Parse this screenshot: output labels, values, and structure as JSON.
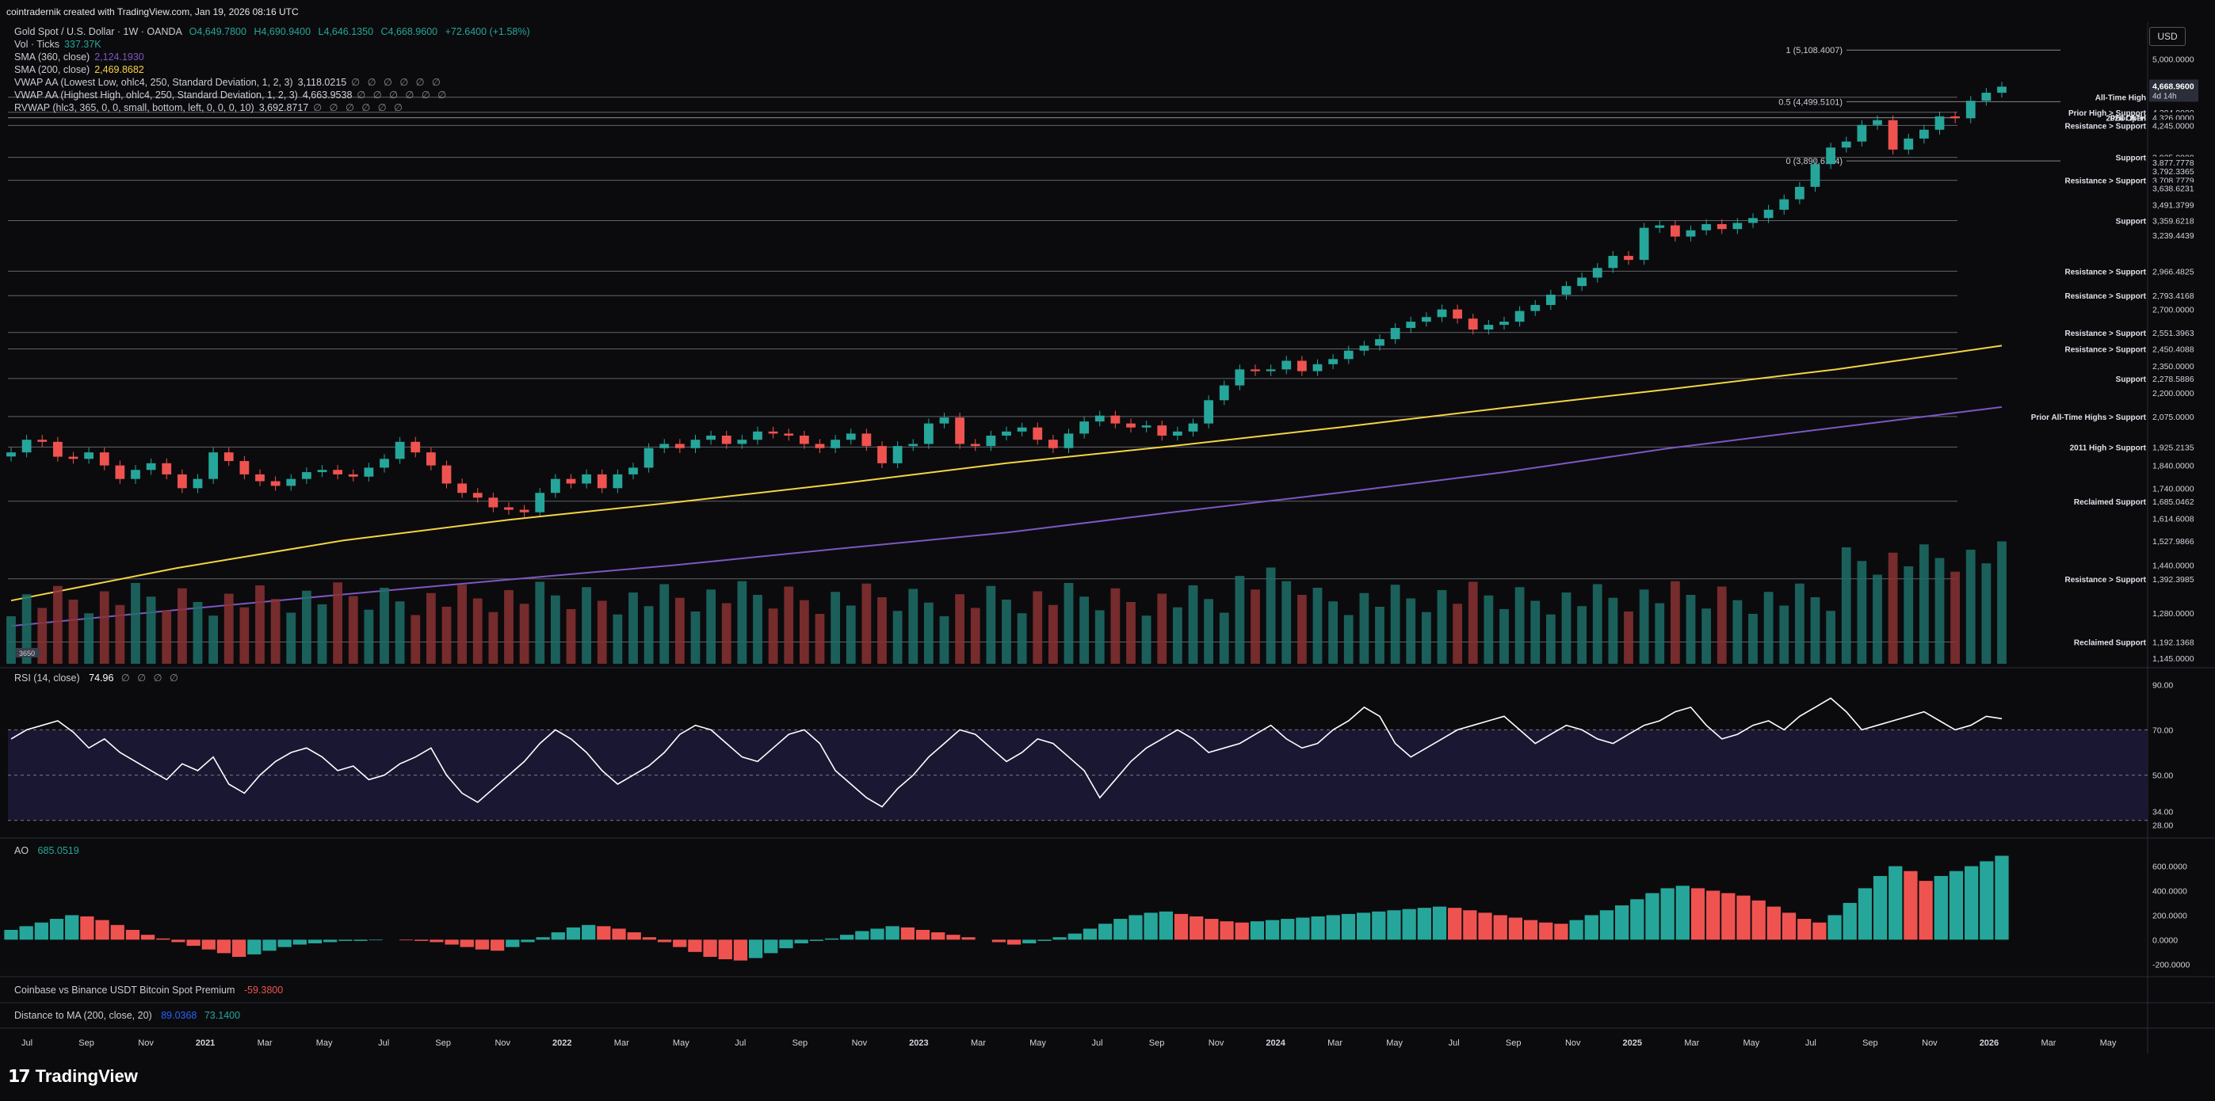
{
  "header": {
    "credit": "cointradernik created with TradingView.com, Jan 19, 2026 08:16 UTC",
    "symbol": "Gold Spot / U.S. Dollar · 1W · OANDA",
    "ohlc": {
      "o": "O4,649.7800",
      "h": "H4,690.9400",
      "l": "L4,646.1350",
      "c": "C4,668.9600",
      "chg": "+72.6400 (+1.58%)"
    },
    "indicators": [
      {
        "label": "Vol · Ticks",
        "value": "337.37K",
        "color": "#26a69a"
      },
      {
        "label": "SMA (360, close)",
        "value": "2,124.1930",
        "color": "#7e57c2"
      },
      {
        "label": "SMA (200, close)",
        "value": "2,469.8682",
        "color": "#f5d442"
      },
      {
        "label": "VWAP AA (Lowest Low, ohlc4, 250, Standard Deviation, 1, 2, 3)",
        "value": "3,118.0215",
        "color": "#d1d4dc"
      },
      {
        "label": "VWAP AA (Highest High, ohlc4, 250, Standard Deviation, 1, 2, 3)",
        "value": "4,663.9538",
        "color": "#d1d4dc"
      },
      {
        "label": "RVWAP (hlc3, 365, 0, 0, small, bottom, left, 0, 0, 0, 10)",
        "value": "3,692.8717",
        "color": "#d1d4dc"
      }
    ],
    "dots": "∅ ∅ ∅ ∅ ∅ ∅",
    "currency": "USD"
  },
  "rsi_panel": {
    "label": "RSI (14, close)",
    "value": "74.96",
    "dots": "∅ ∅ ∅ ∅"
  },
  "ao_panel": {
    "label": "AO",
    "value": "685.0519"
  },
  "premium_panel": {
    "label": "Coinbase vs Binance USDT Bitcoin Spot Premium",
    "value": "-59.3800"
  },
  "ma_panel": {
    "label": "Distance to MA (200, close, 20)",
    "v1": "89.0368",
    "v2": "73.1400"
  },
  "logo": "TradingView",
  "volume_badge": "3650",
  "chart_data": {
    "type": "line",
    "title": "Gold Spot / U.S. Dollar · 1W · OANDA",
    "x_axis_labels": [
      "Jul",
      "Sep",
      "Nov",
      "2021",
      "Mar",
      "May",
      "Jul",
      "Sep",
      "Nov",
      "2022",
      "Mar",
      "May",
      "Jul",
      "Sep",
      "Nov",
      "2023",
      "Mar",
      "May",
      "Jul",
      "Sep",
      "Nov",
      "2024",
      "Mar",
      "May",
      "Jul",
      "Sep",
      "Nov",
      "2025",
      "Mar",
      "May",
      "Jul",
      "Sep",
      "Nov",
      "2026",
      "Mar",
      "May"
    ],
    "price_axis_labels": [
      {
        "v": "5,000.0000"
      },
      {
        "v": "4,690.0000"
      },
      {
        "v": "4,550.0000"
      },
      {
        "v": "4,384.0000"
      },
      {
        "v": "4,326.0000"
      },
      {
        "v": "4,245.0000"
      },
      {
        "v": "3,925.0000"
      },
      {
        "v": "3,877.7778"
      },
      {
        "v": "3,792.3365"
      },
      {
        "v": "3,708.7779"
      },
      {
        "v": "3,638.6231"
      },
      {
        "v": "3,491.3799"
      },
      {
        "v": "3,359.6218"
      },
      {
        "v": "3,239.4439"
      },
      {
        "v": "2,966.4825"
      },
      {
        "v": "2,793.4168"
      },
      {
        "v": "2,700.0000"
      },
      {
        "v": "2,551.3963"
      },
      {
        "v": "2,450.4088"
      },
      {
        "v": "2,350.0000"
      },
      {
        "v": "2,278.5886"
      },
      {
        "v": "2,200.0000"
      },
      {
        "v": "2,075.0000"
      },
      {
        "v": "1,925.2135"
      },
      {
        "v": "1,840.0000"
      },
      {
        "v": "1,740.0000"
      },
      {
        "v": "1,685.0462"
      },
      {
        "v": "1,614.6008"
      },
      {
        "v": "1,527.9866"
      },
      {
        "v": "1,440.0000"
      },
      {
        "v": "1,392.3985"
      },
      {
        "v": "1,280.0000"
      },
      {
        "v": "1,192.1368"
      },
      {
        "v": "1,145.0000"
      }
    ],
    "last_price": {
      "value": "4,668.9600",
      "countdown": "4d 14h"
    },
    "level_annotations": [
      {
        "label": "All-Time High",
        "price": 4550
      },
      {
        "label": "Prior High > Support",
        "price": 4384
      },
      {
        "label": "Prior ATH",
        "price": 4326
      },
      {
        "label": "2026 Open",
        "price": 4326
      },
      {
        "label": "Resistance > Support",
        "price": 4245
      },
      {
        "label": "Support",
        "price": 3925
      },
      {
        "label": "Resistance > Support",
        "price": 3708.7779
      },
      {
        "label": "Support",
        "price": 3359.6218
      },
      {
        "label": "Resistance > Support",
        "price": 2966.4825
      },
      {
        "label": "Resistance > Support",
        "price": 2793.4168
      },
      {
        "label": "Resistance > Support",
        "price": 2551.3963
      },
      {
        "label": "Resistance > Support",
        "price": 2450.4088
      },
      {
        "label": "Support",
        "price": 2278.5886
      },
      {
        "label": "Prior All-Time Highs > Support",
        "price": 2075
      },
      {
        "label": "2011 High > Support",
        "price": 1925.2135
      },
      {
        "label": "Reclaimed Support",
        "price": 1685.0462
      },
      {
        "label": "Resistance > Support",
        "price": 1392.3985
      },
      {
        "label": "Reclaimed Support",
        "price": 1192.1368
      }
    ],
    "fib_labels": [
      {
        "label": "1 (5,108.4007)",
        "price": 5108.4
      },
      {
        "label": "0.5 (4,499.5101)",
        "price": 4499.5
      },
      {
        "label": "0 (3,890.6194)",
        "price": 3890.6
      }
    ],
    "close_series": [
      1900,
      1960,
      1950,
      1880,
      1870,
      1900,
      1840,
      1780,
      1820,
      1850,
      1800,
      1740,
      1780,
      1900,
      1860,
      1800,
      1770,
      1750,
      1780,
      1810,
      1820,
      1800,
      1790,
      1830,
      1870,
      1950,
      1900,
      1840,
      1760,
      1720,
      1700,
      1660,
      1650,
      1640,
      1720,
      1780,
      1760,
      1800,
      1740,
      1800,
      1830,
      1920,
      1940,
      1920,
      1960,
      1980,
      1940,
      1960,
      2000,
      1990,
      1980,
      1940,
      1920,
      1960,
      1990,
      1930,
      1850,
      1930,
      1940,
      2040,
      2070,
      1940,
      1930,
      1980,
      2000,
      2020,
      1960,
      1920,
      1990,
      2050,
      2080,
      2040,
      2020,
      2030,
      1980,
      2000,
      2040,
      2160,
      2240,
      2330,
      2320,
      2330,
      2380,
      2320,
      2360,
      2390,
      2440,
      2470,
      2510,
      2580,
      2620,
      2650,
      2700,
      2640,
      2570,
      2600,
      2620,
      2690,
      2730,
      2800,
      2860,
      2920,
      2990,
      3080,
      3050,
      3300,
      3320,
      3230,
      3280,
      3330,
      3290,
      3340,
      3380,
      3450,
      3540,
      3650,
      3860,
      4020,
      4080,
      4250,
      4300,
      4000,
      4110,
      4200,
      4340,
      4320,
      4510,
      4600,
      4669
    ],
    "sma200": [
      1320,
      1430,
      1530,
      1610,
      1680,
      1760,
      1850,
      1930,
      2020,
      2120,
      2220,
      2330,
      2470
    ],
    "sma360": [
      1240,
      1290,
      1340,
      1390,
      1440,
      1500,
      1560,
      1640,
      1720,
      1810,
      1920,
      2020,
      2124
    ],
    "rsi_values": [
      66,
      70,
      72,
      74,
      69,
      62,
      66,
      60,
      56,
      52,
      48,
      55,
      52,
      58,
      46,
      42,
      50,
      56,
      60,
      62,
      58,
      52,
      54,
      48,
      50,
      55,
      58,
      62,
      50,
      42,
      38,
      44,
      50,
      56,
      64,
      70,
      66,
      60,
      52,
      46,
      50,
      54,
      60,
      68,
      72,
      70,
      64,
      58,
      56,
      62,
      68,
      70,
      64,
      52,
      46,
      40,
      36,
      44,
      50,
      58,
      64,
      70,
      68,
      62,
      56,
      60,
      66,
      64,
      58,
      52,
      40,
      48,
      56,
      62,
      66,
      70,
      66,
      60,
      62,
      64,
      68,
      72,
      66,
      62,
      64,
      70,
      74,
      80,
      76,
      64,
      58,
      62,
      66,
      70,
      72,
      74,
      76,
      70,
      64,
      68,
      72,
      70,
      66,
      64,
      68,
      72,
      74,
      78,
      80,
      72,
      66,
      68,
      72,
      74,
      70,
      76,
      80,
      84,
      78,
      70,
      72,
      74,
      76,
      78,
      74,
      70,
      72,
      76,
      74.96
    ],
    "rsi_axis": [
      90,
      70,
      50,
      34,
      28
    ],
    "ao_values": [
      80,
      110,
      140,
      170,
      200,
      190,
      160,
      120,
      80,
      40,
      10,
      -20,
      -50,
      -80,
      -110,
      -140,
      -120,
      -90,
      -60,
      -40,
      -30,
      -20,
      -10,
      -10,
      -5,
      0,
      -5,
      -10,
      -20,
      -40,
      -60,
      -80,
      -90,
      -60,
      -20,
      20,
      60,
      100,
      120,
      110,
      90,
      60,
      20,
      -20,
      -60,
      -100,
      -140,
      -160,
      -170,
      -150,
      -110,
      -70,
      -30,
      -10,
      10,
      40,
      70,
      90,
      110,
      100,
      80,
      60,
      40,
      20,
      0,
      -20,
      -40,
      -30,
      -10,
      20,
      50,
      90,
      130,
      170,
      200,
      220,
      230,
      210,
      190,
      170,
      150,
      140,
      150,
      160,
      170,
      180,
      190,
      200,
      210,
      220,
      230,
      240,
      250,
      260,
      270,
      260,
      240,
      220,
      200,
      180,
      160,
      140,
      130,
      160,
      200,
      240,
      280,
      330,
      380,
      420,
      440,
      420,
      400,
      380,
      360,
      320,
      270,
      220,
      170,
      140,
      200,
      300,
      420,
      520,
      600,
      560,
      480,
      520,
      560,
      600,
      640,
      685
    ]
  }
}
